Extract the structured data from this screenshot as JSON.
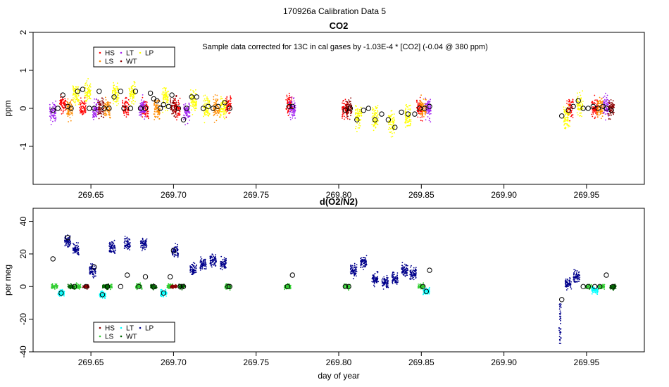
{
  "figure_title": "170926a   Calibration Data 5",
  "chart_data": [
    {
      "type": "scatter",
      "title": "CO2",
      "annotation": "Sample data corrected for 13C in cal gases by -1.03E-4 * [CO2] (-0.04 @ 380 ppm)",
      "xlabel": "",
      "ylabel": "ppm",
      "xlim": [
        269.615,
        269.985
      ],
      "ylim": [
        -2,
        2
      ],
      "xticks": [
        269.65,
        269.7,
        269.75,
        269.8,
        269.85,
        269.9,
        269.95
      ],
      "xtick_labels": [
        "269.65",
        "269.70",
        "269.75",
        "269.80",
        "269.85",
        "269.90",
        "269.95"
      ],
      "yticks": [
        -1,
        0,
        1,
        2
      ],
      "ytick_labels": [
        "-1",
        "0",
        "1",
        "2"
      ],
      "legend": {
        "position": "top-left",
        "items": [
          {
            "label": "HS",
            "color": "#ff0000"
          },
          {
            "label": "LT",
            "color": "#a020f0"
          },
          {
            "label": "LP",
            "color": "#ffff00"
          },
          {
            "label": "LS",
            "color": "#ff8c00"
          },
          {
            "label": "WT",
            "color": "#8b0000"
          }
        ]
      },
      "series": [
        {
          "name": "HS",
          "color": "#ff0000",
          "spread": 0.25,
          "x": [
            269.633,
            269.645,
            269.671,
            269.683,
            269.702,
            269.733,
            269.77,
            269.804,
            269.849,
            269.94,
            269.955
          ],
          "y": [
            0.1,
            0.0,
            0.05,
            0.0,
            0.0,
            0.1,
            0.1,
            0.0,
            0.0,
            0.0,
            0.0
          ]
        },
        {
          "name": "LT",
          "color": "#a020f0",
          "spread": 0.25,
          "x": [
            269.627,
            269.653,
            269.681,
            269.708,
            269.772,
            269.854,
            269.962
          ],
          "y": [
            -0.1,
            -0.05,
            0.0,
            -0.1,
            0.0,
            0.0,
            0.05
          ]
        },
        {
          "name": "LS",
          "color": "#ff8c00",
          "spread": 0.25,
          "x": [
            269.637,
            269.66,
            269.69,
            269.726,
            269.851,
            269.958
          ],
          "y": [
            0.0,
            0.0,
            0.0,
            0.0,
            0.0,
            0.0
          ]
        },
        {
          "name": "LP",
          "color": "#ffff00",
          "spread": 0.28,
          "x": [
            269.641,
            269.648,
            269.665,
            269.675,
            269.695,
            269.712,
            269.72,
            269.73,
            269.812,
            269.822,
            269.832,
            269.842,
            269.938,
            269.946
          ],
          "y": [
            0.4,
            0.4,
            0.4,
            0.4,
            0.3,
            0.2,
            0.0,
            0.0,
            -0.2,
            -0.2,
            -0.4,
            -0.2,
            -0.2,
            0.1
          ]
        },
        {
          "name": "WT",
          "color": "#8b0000",
          "spread": 0.25,
          "x": [
            269.656,
            269.7,
            269.806,
            269.965
          ],
          "y": [
            0.0,
            0.0,
            0.0,
            0.0
          ]
        }
      ],
      "means": {
        "x": [
          269.627,
          269.63,
          269.633,
          269.636,
          269.638,
          269.642,
          269.645,
          269.649,
          269.652,
          269.655,
          269.658,
          269.661,
          269.664,
          269.668,
          269.67,
          269.674,
          269.677,
          269.68,
          269.683,
          269.686,
          269.688,
          269.69,
          269.692,
          269.694,
          269.697,
          269.699,
          269.703,
          269.706,
          269.708,
          269.711,
          269.714,
          269.718,
          269.721,
          269.724,
          269.727,
          269.731,
          269.734,
          269.77,
          269.772,
          269.804,
          269.807,
          269.811,
          269.815,
          269.818,
          269.822,
          269.826,
          269.83,
          269.834,
          269.838,
          269.842,
          269.846,
          269.849,
          269.852,
          269.855,
          269.935,
          269.939,
          269.942,
          269.945,
          269.948,
          269.951,
          269.954,
          269.957,
          269.96,
          269.962,
          269.965
        ],
        "y": [
          -0.05,
          0.0,
          0.35,
          0.05,
          0.0,
          0.45,
          0.5,
          0.0,
          0.0,
          0.45,
          0.0,
          0.0,
          0.3,
          0.45,
          0.0,
          0.0,
          0.45,
          0.0,
          0.0,
          0.4,
          0.25,
          0.2,
          0.0,
          0.1,
          0.05,
          0.35,
          0.0,
          -0.3,
          0.0,
          0.3,
          0.3,
          0.0,
          0.05,
          0.0,
          0.05,
          0.15,
          0.0,
          0.05,
          0.05,
          -0.05,
          0.0,
          -0.3,
          -0.05,
          0.0,
          -0.3,
          -0.15,
          -0.3,
          -0.5,
          -0.1,
          -0.15,
          -0.15,
          0.0,
          0.0,
          0.05,
          -0.2,
          -0.05,
          0.05,
          0.2,
          0.0,
          0.0,
          0.05,
          0.0,
          0.05,
          0.0,
          -0.05
        ]
      }
    },
    {
      "type": "scatter",
      "title": "d(O2/N2)",
      "xlabel": "day of year",
      "ylabel": "per meg",
      "xlim": [
        269.615,
        269.985
      ],
      "ylim": [
        -40,
        48
      ],
      "xticks": [
        269.65,
        269.7,
        269.75,
        269.8,
        269.85,
        269.9,
        269.95
      ],
      "xtick_labels": [
        "269.65",
        "269.70",
        "269.75",
        "269.80",
        "269.85",
        "269.90",
        "269.95"
      ],
      "yticks": [
        -40,
        -20,
        0,
        20,
        40
      ],
      "ytick_labels": [
        "-40",
        "-20",
        "0",
        "20",
        "40"
      ],
      "legend": {
        "position": "bottom-left",
        "items": [
          {
            "label": "HS",
            "color": "#8b0000"
          },
          {
            "label": "LT",
            "color": "#00ffff"
          },
          {
            "label": "LP",
            "color": "#00008b"
          },
          {
            "label": "LS",
            "color": "#32cd32"
          },
          {
            "label": "WT",
            "color": "#006400"
          }
        ]
      },
      "series": [
        {
          "name": "LP",
          "color": "#00008b",
          "spread": 3.5,
          "x": [
            269.636,
            269.641,
            269.651,
            269.663,
            269.672,
            269.682,
            269.701,
            269.712,
            269.718,
            269.724,
            269.73,
            269.809,
            269.815,
            269.822,
            269.828,
            269.834,
            269.84,
            269.845,
            269.939,
            269.944
          ],
          "y": [
            28.0,
            23.0,
            10.0,
            24.0,
            26.0,
            26.0,
            22.0,
            10.0,
            14.0,
            16.0,
            14.0,
            10.0,
            15.0,
            5.0,
            2.0,
            5.0,
            10.0,
            8.0,
            2.0,
            6.0
          ]
        },
        {
          "name": "LS",
          "color": "#32cd32",
          "spread": 1.5,
          "x": [
            269.628,
            269.642,
            269.661,
            269.679,
            269.698,
            269.733,
            269.769,
            269.805,
            269.85,
            269.951,
            269.959
          ],
          "y": [
            0.0,
            0.0,
            0.0,
            0.0,
            0.0,
            0.0,
            0.0,
            0.0,
            0.0,
            0.0,
            0.0
          ]
        },
        {
          "name": "WT",
          "color": "#006400",
          "spread": 1.5,
          "x": [
            269.638,
            269.659,
            269.688,
            269.705,
            269.966
          ],
          "y": [
            0.0,
            0.0,
            0.0,
            0.0,
            0.0
          ]
        },
        {
          "name": "LT",
          "color": "#00ffff",
          "spread": 2.0,
          "x": [
            269.632,
            269.657,
            269.694,
            269.853,
            269.955
          ],
          "y": [
            -4.0,
            -5.0,
            -4.0,
            -3.0,
            -2.0
          ]
        },
        {
          "name": "HS",
          "color": "#8b0000",
          "spread": 1.0,
          "x": [
            269.647,
            269.7
          ],
          "y": [
            0.0,
            0.0
          ]
        }
      ],
      "means": {
        "x": [
          269.627,
          269.632,
          269.636,
          269.64,
          269.647,
          269.652,
          269.657,
          269.66,
          269.668,
          269.672,
          269.679,
          269.683,
          269.688,
          269.694,
          269.698,
          269.7,
          269.704,
          269.706,
          269.733,
          269.734,
          269.769,
          269.772,
          269.804,
          269.806,
          269.851,
          269.853,
          269.855,
          269.935,
          269.948,
          269.951,
          269.955,
          269.958,
          269.962,
          269.966
        ],
        "y": [
          17.0,
          -4.0,
          30.0,
          0.0,
          0.0,
          12.0,
          -5.0,
          0.0,
          0.0,
          7.0,
          0.0,
          6.0,
          0.0,
          -4.0,
          6.0,
          22.0,
          0.0,
          0.0,
          0.0,
          0.0,
          0.0,
          7.0,
          0.0,
          0.0,
          0.0,
          -3.0,
          10.0,
          -8.0,
          0.0,
          0.0,
          0.0,
          0.0,
          7.0,
          0.0
        ]
      },
      "spike": {
        "x": 269.934,
        "y": [
          -35.0,
          -10.0
        ]
      }
    }
  ]
}
